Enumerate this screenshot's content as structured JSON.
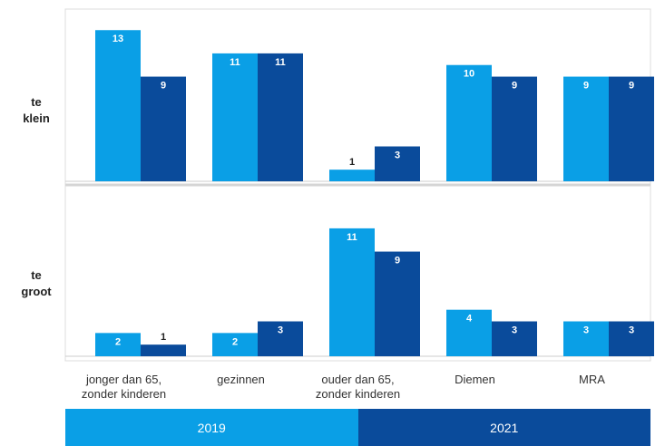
{
  "chart_data": {
    "type": "bar",
    "categories": [
      "jonger dan 65,\nzonder kinderen",
      "gezinnen",
      "ouder dan 65,\nzonder kinderen",
      "Diemen",
      "MRA"
    ],
    "panels": [
      {
        "label": "te\nklein",
        "series": [
          {
            "name": "2019",
            "values": [
              13,
              11,
              1,
              10,
              9
            ]
          },
          {
            "name": "2021",
            "values": [
              9,
              11,
              3,
              9,
              9
            ]
          }
        ]
      },
      {
        "label": "te\ngroot",
        "series": [
          {
            "name": "2019",
            "values": [
              2,
              2,
              11,
              4,
              3
            ]
          },
          {
            "name": "2021",
            "values": [
              1,
              3,
              9,
              3,
              3
            ]
          }
        ]
      }
    ],
    "colors": {
      "2019": "#0a9fe6",
      "2021": "#0a4b9b"
    },
    "ylim": [
      0,
      14.5
    ],
    "grid": false,
    "legend_position": "bottom"
  }
}
